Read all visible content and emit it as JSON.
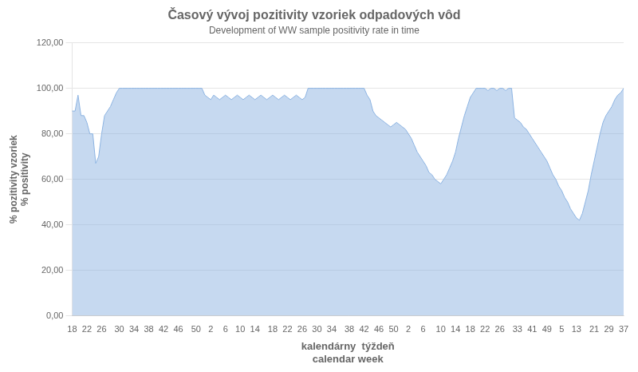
{
  "chart_data": {
    "type": "area",
    "title": "Časový vývoj pozitivity vzoriek odpadových vôd",
    "subtitle": "Development of WW sample positivity rate in time",
    "x_label": "kalendárny  týždeň\ncalendar week",
    "y_label": "% pozitivity vzoriek\n% positivity",
    "color": "#8db4e2",
    "grid": true,
    "ylim": [
      0,
      120
    ],
    "yticks": [
      {
        "value": 0,
        "label": "0,00"
      },
      {
        "value": 20,
        "label": "20,00"
      },
      {
        "value": 40,
        "label": "40,00"
      },
      {
        "value": 60,
        "label": "60,00"
      },
      {
        "value": 80,
        "label": "80,00"
      },
      {
        "value": 100,
        "label": "100,00"
      },
      {
        "value": 120,
        "label": "120,00"
      }
    ],
    "categories": [
      "18",
      null,
      null,
      null,
      null,
      "22",
      null,
      null,
      null,
      null,
      "26",
      null,
      null,
      null,
      null,
      null,
      "30",
      null,
      null,
      null,
      null,
      "34",
      null,
      null,
      null,
      null,
      "38",
      null,
      null,
      null,
      null,
      "42",
      null,
      null,
      null,
      null,
      "46",
      null,
      null,
      null,
      null,
      null,
      "50",
      null,
      null,
      null,
      null,
      "2",
      null,
      null,
      null,
      null,
      "6",
      null,
      null,
      null,
      null,
      "10",
      null,
      null,
      null,
      null,
      "14",
      null,
      null,
      null,
      null,
      null,
      "18",
      null,
      null,
      null,
      null,
      "22",
      null,
      null,
      null,
      null,
      "26",
      null,
      null,
      null,
      null,
      "30",
      null,
      null,
      null,
      null,
      "34",
      null,
      null,
      null,
      null,
      null,
      "38",
      null,
      null,
      null,
      null,
      "42",
      null,
      null,
      null,
      null,
      "46",
      null,
      null,
      null,
      null,
      "50",
      null,
      null,
      null,
      null,
      "2",
      null,
      null,
      null,
      null,
      "6",
      null,
      null,
      null,
      null,
      null,
      "10",
      null,
      null,
      null,
      null,
      "14",
      null,
      null,
      null,
      null,
      "18",
      null,
      null,
      null,
      null,
      "22",
      null,
      null,
      null,
      null,
      "26",
      null,
      null,
      null,
      null,
      null,
      "33",
      null,
      null,
      null,
      null,
      "41",
      null,
      null,
      null,
      null,
      "49",
      null,
      null,
      null,
      null,
      "5",
      null,
      null,
      null,
      null,
      "13",
      null,
      null,
      null,
      null,
      null,
      "21",
      null,
      null,
      null,
      null,
      "29",
      null,
      null,
      null,
      null,
      "37"
    ],
    "values": [
      90,
      90,
      97,
      88,
      88,
      85,
      80,
      80,
      67,
      70,
      80,
      88,
      90,
      92,
      95,
      98,
      100,
      100,
      100,
      100,
      100,
      100,
      100,
      100,
      100,
      100,
      100,
      100,
      100,
      100,
      100,
      100,
      100,
      100,
      100,
      100,
      100,
      100,
      100,
      100,
      100,
      100,
      100,
      100,
      100,
      97,
      96,
      95,
      97,
      96,
      95,
      96,
      97,
      96,
      95,
      96,
      97,
      96,
      95,
      96,
      97,
      96,
      95,
      96,
      97,
      96,
      95,
      96,
      97,
      96,
      95,
      96,
      97,
      96,
      95,
      96,
      97,
      96,
      95,
      96,
      100,
      100,
      100,
      100,
      100,
      100,
      100,
      100,
      100,
      100,
      100,
      100,
      100,
      100,
      100,
      100,
      100,
      100,
      100,
      100,
      97,
      95,
      90,
      88,
      87,
      86,
      85,
      84,
      83,
      84,
      85,
      84,
      83,
      82,
      80,
      78,
      75,
      72,
      70,
      68,
      66,
      63,
      62,
      60,
      59,
      58,
      60,
      62,
      65,
      68,
      72,
      78,
      83,
      88,
      92,
      96,
      98,
      100,
      100,
      100,
      100,
      99,
      100,
      100,
      99,
      100,
      100,
      99,
      100,
      100,
      87,
      86,
      85,
      83,
      82,
      80,
      78,
      76,
      74,
      72,
      70,
      68,
      65,
      62,
      60,
      57,
      55,
      52,
      50,
      47,
      45,
      43,
      42,
      45,
      50,
      55,
      62,
      68,
      74,
      80,
      85,
      88,
      90,
      92,
      95,
      97,
      98,
      100
    ]
  }
}
